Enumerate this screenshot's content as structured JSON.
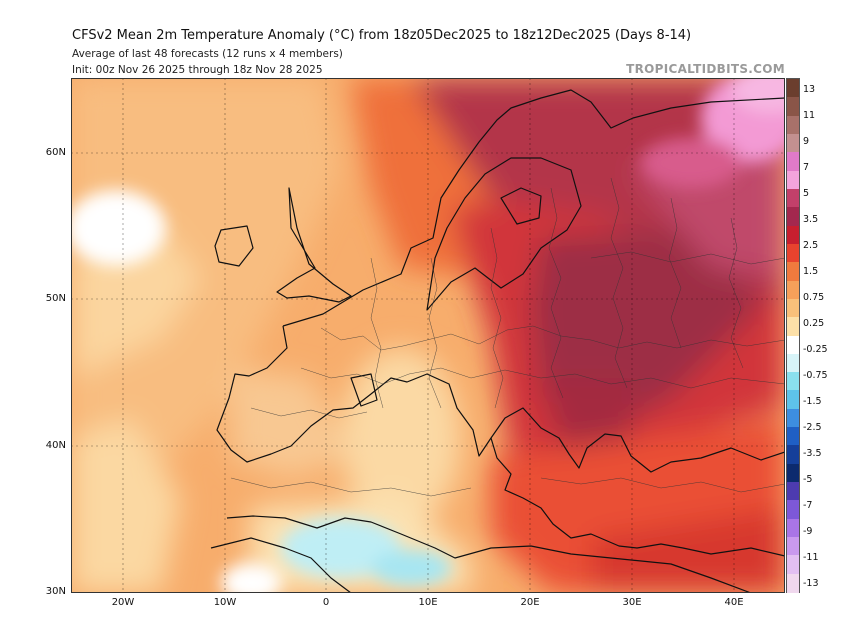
{
  "header": {
    "title": "CFSv2 Mean 2m Temperature Anomaly (°C) from 18z05Dec2025 to 18z12Dec2025 (Days 8-14)",
    "subtitle1": "Average of last 48 forecasts (12 runs x 4 members)",
    "subtitle2": "Init: 00z Nov 26 2025 through 18z Nov 28 2025",
    "credit": "TROPICALTIDBITS.COM"
  },
  "map": {
    "region": "Europe / North Africa",
    "lat_labels": [
      "60N",
      "50N",
      "40N",
      "30N"
    ],
    "lon_labels": [
      "20W",
      "10W",
      "0",
      "10E",
      "20E",
      "30E",
      "40E"
    ]
  },
  "colorbar": {
    "ticks": [
      "13",
      "11",
      "9",
      "7",
      "5",
      "3.5",
      "2.5",
      "1.5",
      "0.75",
      "0.25",
      "-0.25",
      "-0.75",
      "-1.5",
      "-2.5",
      "-3.5",
      "-5",
      "-7",
      "-9",
      "-11",
      "-13"
    ],
    "colors": [
      "#6b3e2e",
      "#8a5548",
      "#a8716a",
      "#c39090",
      "#e07ac8",
      "#f3a4dc",
      "#c2406a",
      "#a3284e",
      "#c71f2f",
      "#e8432e",
      "#f07a3e",
      "#f6a05a",
      "#f9c07a",
      "#fde0a8",
      "#ffffff",
      "#d8f4f8",
      "#8ae0ee",
      "#5ec3ea",
      "#3d8ee0",
      "#1f5fc4",
      "#153f9a",
      "#0c2a6e",
      "#4d3bb0",
      "#7d58d8",
      "#a975e6",
      "#c999ee",
      "#e2bff2",
      "#f0d8ee"
    ]
  }
}
